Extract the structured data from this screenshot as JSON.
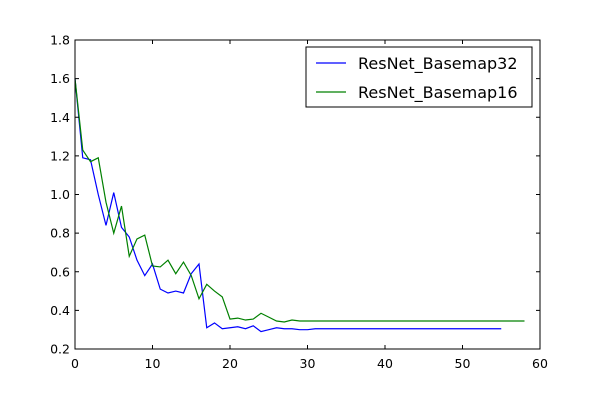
{
  "chart_data": {
    "type": "line",
    "xlim": [
      0,
      60
    ],
    "ylim": [
      0.2,
      1.8
    ],
    "xticks": [
      0,
      10,
      20,
      30,
      40,
      50,
      60
    ],
    "yticks": [
      0.2,
      0.4,
      0.6,
      0.8,
      1.0,
      1.2,
      1.4,
      1.6,
      1.8
    ],
    "xtick_labels": [
      "0",
      "10",
      "20",
      "30",
      "40",
      "50",
      "60"
    ],
    "ytick_labels": [
      "0.2",
      "0.4",
      "0.6",
      "0.8",
      "1.0",
      "1.2",
      "1.4",
      "1.6",
      "1.8"
    ],
    "grid": false,
    "legend_position": "top-right",
    "series": [
      {
        "name": "ResNet_Basemap32",
        "color": "#0000ff",
        "x": [
          0,
          1,
          2,
          3,
          4,
          5,
          6,
          7,
          8,
          9,
          10,
          11,
          12,
          13,
          14,
          15,
          16,
          17,
          18,
          19,
          20,
          21,
          22,
          23,
          24,
          25,
          26,
          27,
          28,
          29,
          30,
          31,
          32,
          33,
          34,
          35,
          36,
          37,
          38,
          39,
          40,
          41,
          42,
          43,
          44,
          45,
          46,
          47,
          48,
          49,
          50,
          51,
          52,
          53,
          54,
          55
        ],
        "y": [
          1.6,
          1.19,
          1.18,
          1.0,
          0.84,
          1.01,
          0.83,
          0.78,
          0.66,
          0.58,
          0.64,
          0.51,
          0.49,
          0.5,
          0.49,
          0.59,
          0.64,
          0.31,
          0.335,
          0.305,
          0.31,
          0.315,
          0.305,
          0.32,
          0.29,
          0.3,
          0.31,
          0.305,
          0.305,
          0.3,
          0.3,
          0.305,
          0.305,
          0.305,
          0.305,
          0.305,
          0.305,
          0.305,
          0.305,
          0.305,
          0.305,
          0.305,
          0.305,
          0.305,
          0.305,
          0.305,
          0.305,
          0.305,
          0.305,
          0.305,
          0.305,
          0.305,
          0.305,
          0.305,
          0.305,
          0.305
        ]
      },
      {
        "name": "ResNet_Basemap16",
        "color": "#008000",
        "x": [
          0,
          1,
          2,
          3,
          4,
          5,
          6,
          7,
          8,
          9,
          10,
          11,
          12,
          13,
          14,
          15,
          16,
          17,
          18,
          19,
          20,
          21,
          22,
          23,
          24,
          25,
          26,
          27,
          28,
          29,
          30,
          31,
          32,
          33,
          34,
          35,
          36,
          37,
          38,
          39,
          40,
          41,
          42,
          43,
          44,
          45,
          46,
          47,
          48,
          49,
          50,
          51,
          52,
          53,
          54,
          55,
          56,
          57,
          58
        ],
        "y": [
          1.6,
          1.23,
          1.17,
          1.19,
          0.96,
          0.8,
          0.94,
          0.68,
          0.77,
          0.79,
          0.63,
          0.625,
          0.66,
          0.59,
          0.65,
          0.58,
          0.46,
          0.535,
          0.5,
          0.47,
          0.355,
          0.36,
          0.35,
          0.355,
          0.385,
          0.365,
          0.345,
          0.34,
          0.35,
          0.345,
          0.345,
          0.345,
          0.345,
          0.345,
          0.345,
          0.345,
          0.345,
          0.345,
          0.345,
          0.345,
          0.345,
          0.345,
          0.345,
          0.345,
          0.345,
          0.345,
          0.345,
          0.345,
          0.345,
          0.345,
          0.345,
          0.345,
          0.345,
          0.345,
          0.345,
          0.345,
          0.345,
          0.345,
          0.345
        ]
      }
    ]
  }
}
